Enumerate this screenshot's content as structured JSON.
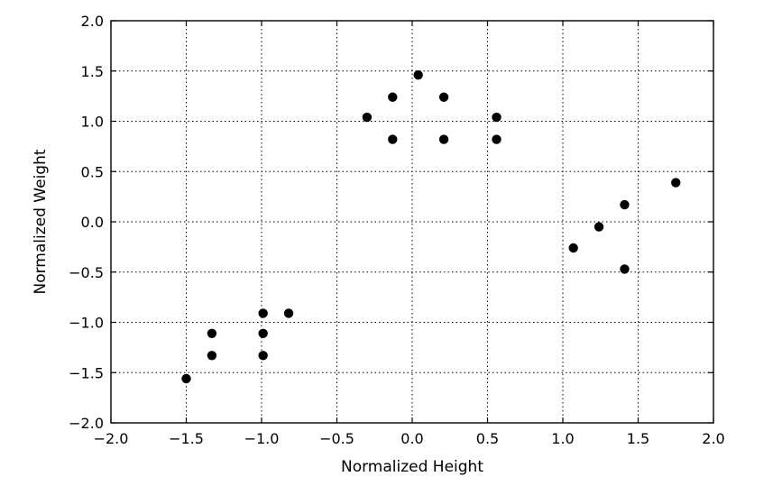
{
  "chart_data": {
    "type": "scatter",
    "xlabel": "Normalized Height",
    "ylabel": "Normalized Weight",
    "xlim": [
      -2.0,
      2.0
    ],
    "ylim": [
      -2.0,
      2.0
    ],
    "xticks": [
      "−2.0",
      "−1.5",
      "−1.0",
      "−0.5",
      "0.0",
      "0.5",
      "1.0",
      "1.5",
      "2.0"
    ],
    "yticks": [
      "−2.0",
      "−1.5",
      "−1.0",
      "−0.5",
      "0.0",
      "0.5",
      "1.0",
      "1.5",
      "2.0"
    ],
    "xtick_values": [
      -2.0,
      -1.5,
      -1.0,
      -0.5,
      0.0,
      0.5,
      1.0,
      1.5,
      2.0
    ],
    "ytick_values": [
      -2.0,
      -1.5,
      -1.0,
      -0.5,
      0.0,
      0.5,
      1.0,
      1.5,
      2.0
    ],
    "grid": true,
    "grid_style": "dotted",
    "marker_color": "#000000",
    "points": [
      {
        "x": -1.5,
        "y": -1.56
      },
      {
        "x": -1.33,
        "y": -1.33
      },
      {
        "x": -1.33,
        "y": -1.11
      },
      {
        "x": -0.99,
        "y": -1.33
      },
      {
        "x": -0.99,
        "y": -1.11
      },
      {
        "x": -0.99,
        "y": -0.91
      },
      {
        "x": -0.82,
        "y": -0.91
      },
      {
        "x": -0.3,
        "y": 1.04
      },
      {
        "x": -0.13,
        "y": 1.24
      },
      {
        "x": -0.13,
        "y": 0.82
      },
      {
        "x": 0.04,
        "y": 1.46
      },
      {
        "x": 0.21,
        "y": 1.24
      },
      {
        "x": 0.21,
        "y": 0.82
      },
      {
        "x": 0.56,
        "y": 1.04
      },
      {
        "x": 0.56,
        "y": 0.82
      },
      {
        "x": 1.07,
        "y": -0.26
      },
      {
        "x": 1.24,
        "y": -0.05
      },
      {
        "x": 1.41,
        "y": 0.17
      },
      {
        "x": 1.41,
        "y": -0.47
      },
      {
        "x": 1.75,
        "y": 0.39
      }
    ]
  }
}
